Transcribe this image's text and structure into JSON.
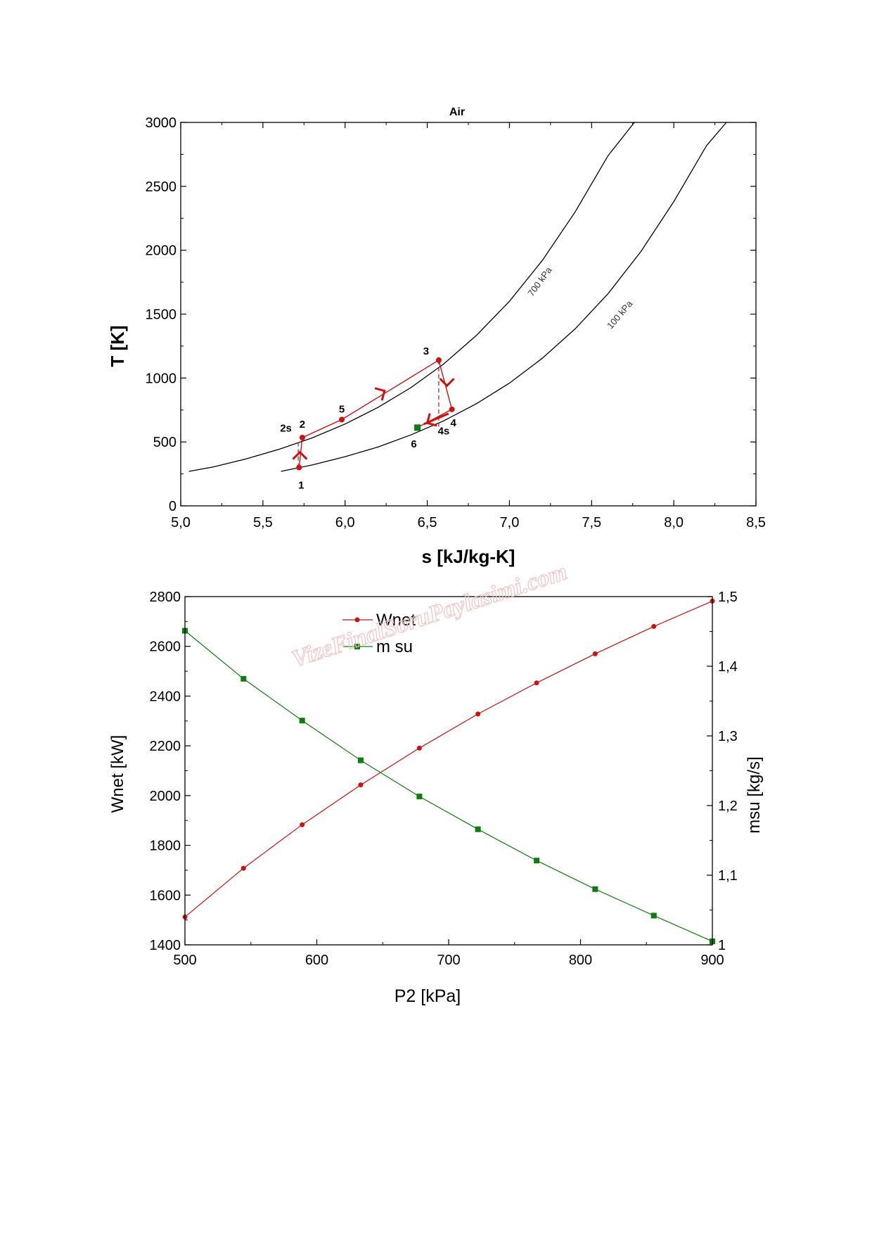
{
  "watermark": "VizeFinalSoruPaylasimi.com",
  "chart_data": [
    {
      "type": "line",
      "title": "Air",
      "xlabel": "s [kJ/kg-K]",
      "ylabel": "T [K]",
      "xlim": [
        5.0,
        8.5
      ],
      "ylim": [
        0,
        3000
      ],
      "xticks": [
        5.0,
        5.5,
        6.0,
        6.5,
        7.0,
        7.5,
        8.0,
        8.5
      ],
      "xtick_labels": [
        "5,0",
        "5,5",
        "6,0",
        "6,5",
        "7,0",
        "7,5",
        "8,0",
        "8,5"
      ],
      "yticks": [
        0,
        500,
        1000,
        1500,
        2000,
        2500,
        3000
      ],
      "ytick_labels": [
        "0",
        "500",
        "1000",
        "1500",
        "2000",
        "2500",
        "3000"
      ],
      "isobars": [
        {
          "name": "700 kPa",
          "color": "#000000",
          "s": [
            5.05,
            5.2,
            5.4,
            5.6,
            5.8,
            6.0,
            6.2,
            6.4,
            6.6,
            6.8,
            7.0,
            7.2,
            7.4,
            7.6,
            7.76
          ],
          "T": [
            270,
            305,
            368,
            443,
            532,
            640,
            770,
            925,
            1110,
            1335,
            1600,
            1920,
            2300,
            2740,
            3000
          ]
        },
        {
          "name": "100 kPa",
          "color": "#000000",
          "s": [
            5.61,
            5.8,
            6.0,
            6.2,
            6.4,
            6.6,
            6.8,
            7.0,
            7.2,
            7.4,
            7.6,
            7.8,
            8.0,
            8.2,
            8.32
          ],
          "T": [
            270,
            320,
            385,
            460,
            555,
            665,
            800,
            960,
            1155,
            1385,
            1660,
            1990,
            2380,
            2820,
            3000
          ]
        }
      ],
      "cycle_points": [
        {
          "label": "1",
          "s": 5.72,
          "T": 300
        },
        {
          "label": "2",
          "s": 5.74,
          "T": 534
        },
        {
          "label": "5",
          "s": 5.98,
          "T": 675
        },
        {
          "label": "3",
          "s": 6.57,
          "T": 1140
        },
        {
          "label": "4",
          "s": 6.65,
          "T": 755
        },
        {
          "label": "6",
          "s": 6.44,
          "T": 612
        }
      ],
      "cycle_path_s": [
        5.72,
        5.74,
        5.98,
        6.57,
        6.65,
        6.44
      ],
      "cycle_path_T": [
        300,
        534,
        675,
        1140,
        755,
        612
      ],
      "extra_labels": [
        "2s",
        "4s"
      ],
      "isentropic_s": [
        6.57,
        6.57
      ],
      "isentropic_T": [
        1140,
        620
      ],
      "cycle_color": "#cc1111",
      "point6_color": "#117a11"
    },
    {
      "type": "line",
      "xlabel": "P2 [kPa]",
      "ylabel_left": "Wnet [kW]",
      "ylabel_right": "msu [kg/s]",
      "xlim": [
        500,
        900
      ],
      "ylim_left": [
        1400,
        2800
      ],
      "ylim_right": [
        1.0,
        1.5
      ],
      "xticks": [
        500,
        600,
        700,
        800,
        900
      ],
      "yticks_left": [
        1400,
        1600,
        1800,
        2000,
        2200,
        2400,
        2600,
        2800
      ],
      "yticks_right": [
        1.0,
        1.1,
        1.2,
        1.3,
        1.4,
        1.5
      ],
      "ytick_right_labels": [
        "1",
        "1,1",
        "1,2",
        "1,3",
        "1,4",
        "1,5"
      ],
      "x": [
        500,
        544.4,
        588.9,
        633.3,
        677.8,
        722.2,
        766.7,
        811.1,
        855.6,
        900
      ],
      "series": [
        {
          "name": "Wnet",
          "axis": "left",
          "color": "#cc1111",
          "marker": "circle",
          "values": [
            1512,
            1708,
            1883,
            2043,
            2191,
            2328,
            2453,
            2570,
            2680,
            2782
          ]
        },
        {
          "name": "m su",
          "axis": "right",
          "color": "#117a11",
          "marker": "square",
          "values": [
            1.451,
            1.382,
            1.322,
            1.265,
            1.213,
            1.166,
            1.121,
            1.08,
            1.042,
            1.005
          ]
        }
      ]
    }
  ]
}
